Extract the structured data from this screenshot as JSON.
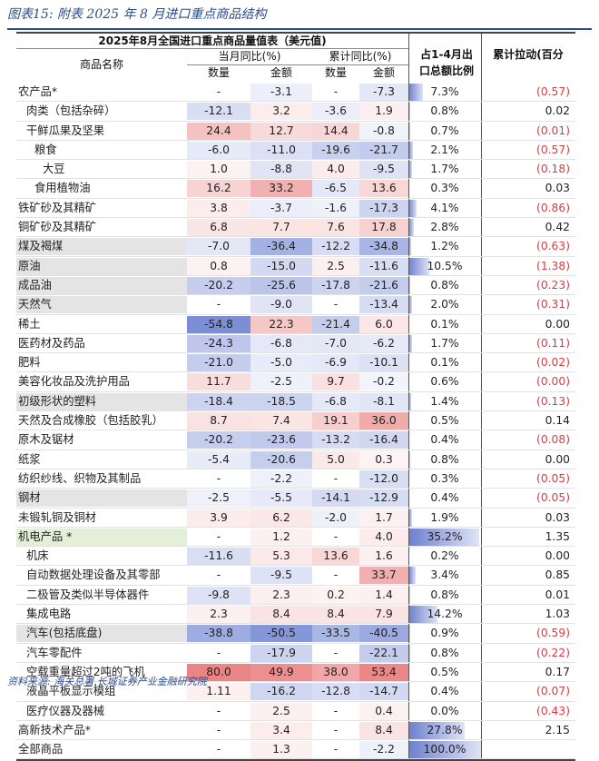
{
  "figure": {
    "title": "图表15:  附表 2025 年 8 月进口重点商品结构",
    "source": "资料来源: 海关总署,长城证券产业金融研究院"
  },
  "table": {
    "caption": "2025年8月全国进口重点商品量值表（美元值)",
    "col_name": "商品名称",
    "col_month_group": "当月同比(%)",
    "col_cum_group": "累计同比(%)",
    "col_qty": "数量",
    "col_amt": "金额",
    "col_share": "占1-4月出口总额比例",
    "col_pull": "累计拉动(百分",
    "rows": [
      {
        "name": "农产品*",
        "indent": 0,
        "m_qty": "-",
        "m_amt": "-3.1",
        "c_qty": "-",
        "c_amt": "-7.3",
        "share": "7.3%",
        "share_val": 7.3,
        "pull": "(0.57)",
        "neg": true,
        "hl": ""
      },
      {
        "name": "肉类（包括杂碎）",
        "indent": 1,
        "m_qty": "-12.1",
        "m_amt": "3.2",
        "c_qty": "-3.6",
        "c_amt": "1.9",
        "share": "0.8%",
        "share_val": 0.8,
        "pull": "0.02",
        "neg": false,
        "hl": ""
      },
      {
        "name": "干鲜瓜果及坚果",
        "indent": 1,
        "m_qty": "24.4",
        "m_amt": "12.7",
        "c_qty": "14.4",
        "c_amt": "-0.8",
        "share": "0.7%",
        "share_val": 0.7,
        "pull": "(0.01)",
        "neg": true,
        "hl": ""
      },
      {
        "name": "粮食",
        "indent": 2,
        "m_qty": "-6.0",
        "m_amt": "-11.0",
        "c_qty": "-19.6",
        "c_amt": "-21.7",
        "share": "2.1%",
        "share_val": 2.1,
        "pull": "(0.57)",
        "neg": true,
        "hl": ""
      },
      {
        "name": "大豆",
        "indent": 3,
        "m_qty": "1.0",
        "m_amt": "-8.8",
        "c_qty": "4.0",
        "c_amt": "-9.5",
        "share": "1.7%",
        "share_val": 1.7,
        "pull": "(0.18)",
        "neg": true,
        "hl": ""
      },
      {
        "name": "食用植物油",
        "indent": 2,
        "m_qty": "16.2",
        "m_amt": "33.2",
        "c_qty": "-6.5",
        "c_amt": "13.6",
        "share": "0.3%",
        "share_val": 0.3,
        "pull": "0.03",
        "neg": false,
        "hl": ""
      },
      {
        "name": "铁矿砂及其精矿",
        "indent": 0,
        "m_qty": "3.8",
        "m_amt": "-3.7",
        "c_qty": "-1.6",
        "c_amt": "-17.3",
        "share": "4.1%",
        "share_val": 4.1,
        "pull": "(0.86)",
        "neg": true,
        "hl": ""
      },
      {
        "name": "铜矿砂及其精矿",
        "indent": 0,
        "m_qty": "6.8",
        "m_amt": "7.7",
        "c_qty": "7.6",
        "c_amt": "17.8",
        "share": "2.8%",
        "share_val": 2.8,
        "pull": "0.42",
        "neg": false,
        "hl": ""
      },
      {
        "name": "煤及褐煤",
        "indent": 0,
        "m_qty": "-7.0",
        "m_amt": "-36.4",
        "c_qty": "-12.2",
        "c_amt": "-34.8",
        "share": "1.2%",
        "share_val": 1.2,
        "pull": "(0.63)",
        "neg": true,
        "hl": "grey"
      },
      {
        "name": "原油",
        "indent": 0,
        "m_qty": "0.8",
        "m_amt": "-15.0",
        "c_qty": "2.5",
        "c_amt": "-11.6",
        "share": "10.5%",
        "share_val": 10.5,
        "pull": "(1.38)",
        "neg": true,
        "hl": "grey"
      },
      {
        "name": "成品油",
        "indent": 0,
        "m_qty": "-20.2",
        "m_amt": "-25.6",
        "c_qty": "-17.8",
        "c_amt": "-21.6",
        "share": "0.8%",
        "share_val": 0.8,
        "pull": "(0.23)",
        "neg": true,
        "hl": "grey"
      },
      {
        "name": "天然气",
        "indent": 0,
        "m_qty": "-",
        "m_amt": "-9.0",
        "c_qty": "-",
        "c_amt": "-13.4",
        "share": "2.0%",
        "share_val": 2.0,
        "pull": "(0.31)",
        "neg": true,
        "hl": "grey"
      },
      {
        "name": "稀土",
        "indent": 0,
        "m_qty": "-54.8",
        "m_amt": "22.3",
        "c_qty": "-21.4",
        "c_amt": "6.0",
        "share": "0.1%",
        "share_val": 0.1,
        "pull": "0.00",
        "neg": false,
        "hl": ""
      },
      {
        "name": "医药材及药品",
        "indent": 0,
        "m_qty": "-24.3",
        "m_amt": "-6.8",
        "c_qty": "-7.0",
        "c_amt": "-6.2",
        "share": "1.7%",
        "share_val": 1.7,
        "pull": "(0.11)",
        "neg": true,
        "hl": ""
      },
      {
        "name": "肥料",
        "indent": 0,
        "m_qty": "-21.0",
        "m_amt": "-5.0",
        "c_qty": "-6.9",
        "c_amt": "-10.1",
        "share": "0.1%",
        "share_val": 0.1,
        "pull": "(0.02)",
        "neg": true,
        "hl": ""
      },
      {
        "name": "美容化妆品及洗护用品",
        "indent": 0,
        "m_qty": "11.7",
        "m_amt": "-2.5",
        "c_qty": "9.7",
        "c_amt": "-0.2",
        "share": "0.6%",
        "share_val": 0.6,
        "pull": "(0.00)",
        "neg": true,
        "hl": ""
      },
      {
        "name": "初级形状的塑料",
        "indent": 0,
        "m_qty": "-18.4",
        "m_amt": "-18.5",
        "c_qty": "-6.8",
        "c_amt": "-8.1",
        "share": "1.4%",
        "share_val": 1.4,
        "pull": "(0.13)",
        "neg": true,
        "hl": "grey"
      },
      {
        "name": "天然及合成橡胶（包括胶乳）",
        "indent": 0,
        "m_qty": "8.7",
        "m_amt": "7.4",
        "c_qty": "19.1",
        "c_amt": "36.0",
        "share": "0.5%",
        "share_val": 0.5,
        "pull": "0.14",
        "neg": false,
        "hl": ""
      },
      {
        "name": "原木及锯材",
        "indent": 0,
        "m_qty": "-20.2",
        "m_amt": "-23.6",
        "c_qty": "-13.2",
        "c_amt": "-16.4",
        "share": "0.4%",
        "share_val": 0.4,
        "pull": "(0.08)",
        "neg": true,
        "hl": ""
      },
      {
        "name": "纸浆",
        "indent": 0,
        "m_qty": "-5.4",
        "m_amt": "-20.6",
        "c_qty": "5.0",
        "c_amt": "0.3",
        "share": "0.8%",
        "share_val": 0.8,
        "pull": "0.00",
        "neg": false,
        "hl": ""
      },
      {
        "name": "纺织纱线、织物及其制品",
        "indent": 0,
        "m_qty": "-",
        "m_amt": "-2.2",
        "c_qty": "-",
        "c_amt": "-12.0",
        "share": "0.3%",
        "share_val": 0.3,
        "pull": "(0.05)",
        "neg": true,
        "hl": ""
      },
      {
        "name": "钢材",
        "indent": 0,
        "m_qty": "-2.5",
        "m_amt": "-5.5",
        "c_qty": "-14.1",
        "c_amt": "-12.9",
        "share": "0.4%",
        "share_val": 0.4,
        "pull": "(0.05)",
        "neg": true,
        "hl": "grey"
      },
      {
        "name": "未锻轧铜及铜材",
        "indent": 0,
        "m_qty": "3.9",
        "m_amt": "6.2",
        "c_qty": "-2.0",
        "c_amt": "1.7",
        "share": "1.9%",
        "share_val": 1.9,
        "pull": "0.03",
        "neg": false,
        "hl": ""
      },
      {
        "name": "机电产品 *",
        "indent": 0,
        "m_qty": "-",
        "m_amt": "1.2",
        "c_qty": "-",
        "c_amt": "4.0",
        "share": "35.2%",
        "share_val": 35.2,
        "pull": "1.35",
        "neg": false,
        "hl": "green"
      },
      {
        "name": "机床",
        "indent": 1,
        "m_qty": "-11.6",
        "m_amt": "5.3",
        "c_qty": "13.6",
        "c_amt": "1.6",
        "share": "0.2%",
        "share_val": 0.2,
        "pull": "0.00",
        "neg": false,
        "hl": ""
      },
      {
        "name": "自动数据处理设备及其零部",
        "indent": 1,
        "m_qty": "-",
        "m_amt": "-9.5",
        "c_qty": "-",
        "c_amt": "33.7",
        "share": "3.4%",
        "share_val": 3.4,
        "pull": "0.85",
        "neg": false,
        "hl": ""
      },
      {
        "name": "二极管及类似半导体器件",
        "indent": 1,
        "m_qty": "-9.8",
        "m_amt": "2.3",
        "c_qty": "0.2",
        "c_amt": "1.4",
        "share": "0.8%",
        "share_val": 0.8,
        "pull": "0.01",
        "neg": false,
        "hl": ""
      },
      {
        "name": "集成电路",
        "indent": 1,
        "m_qty": "2.3",
        "m_amt": "8.4",
        "c_qty": "8.4",
        "c_amt": "7.9",
        "share": "14.2%",
        "share_val": 14.2,
        "pull": "1.03",
        "neg": false,
        "hl": ""
      },
      {
        "name": "汽车(包括底盘)",
        "indent": 1,
        "m_qty": "-38.8",
        "m_amt": "-50.5",
        "c_qty": "-33.5",
        "c_amt": "-40.5",
        "share": "0.9%",
        "share_val": 0.9,
        "pull": "(0.59)",
        "neg": true,
        "hl": "grey"
      },
      {
        "name": "汽车零配件",
        "indent": 1,
        "m_qty": "-",
        "m_amt": "-17.9",
        "c_qty": "-",
        "c_amt": "-22.1",
        "share": "0.8%",
        "share_val": 0.8,
        "pull": "(0.22)",
        "neg": true,
        "hl": ""
      },
      {
        "name": "空载重量超过2吨的飞机",
        "indent": 1,
        "m_qty": "80.0",
        "m_amt": "49.9",
        "c_qty": "38.0",
        "c_amt": "53.4",
        "share": "0.5%",
        "share_val": 0.5,
        "pull": "0.17",
        "neg": false,
        "hl": ""
      },
      {
        "name": "液晶平板显示模组",
        "indent": 1,
        "m_qty": "1.11",
        "m_amt": "-16.2",
        "c_qty": "-12.8",
        "c_amt": "-14.7",
        "share": "0.4%",
        "share_val": 0.4,
        "pull": "(0.07)",
        "neg": true,
        "hl": ""
      },
      {
        "name": "医疗仪器及器械",
        "indent": 1,
        "m_qty": "-",
        "m_amt": "2.5",
        "c_qty": "-",
        "c_amt": "0.4",
        "share": "0.0%",
        "share_val": 0.0,
        "pull": "(0.43)",
        "neg": true,
        "hl": ""
      },
      {
        "name": "高新技术产品*",
        "indent": 0,
        "m_qty": "-",
        "m_amt": "3.4",
        "c_qty": "-",
        "c_amt": "8.4",
        "share": "27.8%",
        "share_val": 27.8,
        "pull": "2.15",
        "neg": false,
        "hl": ""
      },
      {
        "name": "全部商品",
        "indent": 0,
        "m_qty": "-",
        "m_amt": "1.3",
        "c_qty": "-",
        "c_amt": "-2.2",
        "share": "100.0%",
        "share_val": 100.0,
        "pull": "",
        "neg": false,
        "hl": ""
      }
    ]
  }
}
